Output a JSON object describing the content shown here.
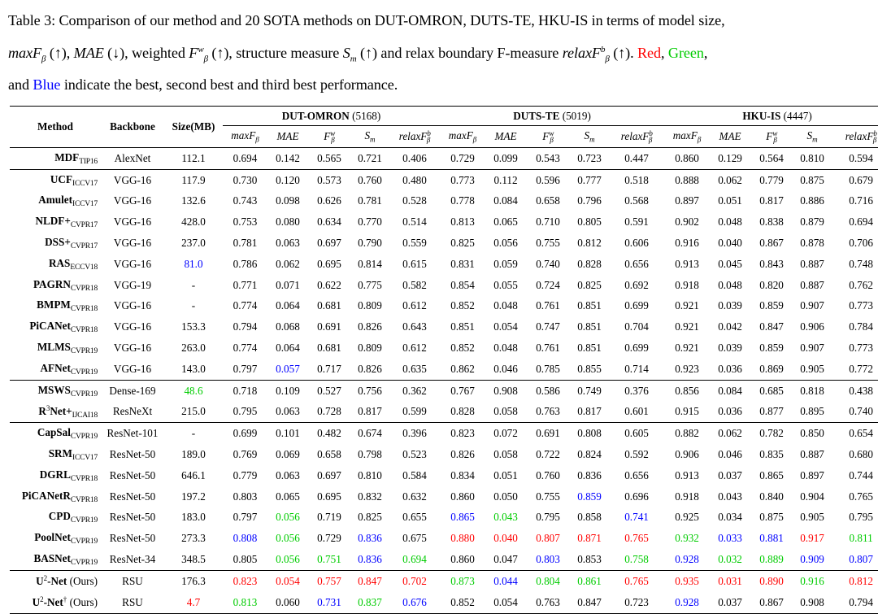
{
  "caption": {
    "line1": "Table 3: Comparison of our method and 20 SOTA methods on DUT-OMRON, DUTS-TE, HKU-IS in terms of model size,",
    "line2_a": "maxF",
    "line2_b": " (↑), ",
    "line2_c": "MAE",
    "line2_d": " (↓), weighted ",
    "line2_e": "F",
    "line2_f": " (↑), structure measure ",
    "line2_g": "S",
    "line2_h": " (↑) and relax boundary F-measure ",
    "line2_i": "relaxF",
    "line2_j": " (↑). ",
    "red_word": "Red",
    "comma": ", ",
    "green_word": "Green",
    "comma2": ",",
    "line3_a": "and ",
    "blue_word": "Blue",
    "line3_b": " indicate the best, second best and third best performance.",
    "sub_beta": "β",
    "sup_w": "w",
    "sub_m": "m",
    "sup_b": "b"
  },
  "header": {
    "method": "Method",
    "backbone": "Backbone",
    "size": "Size(MB)",
    "datasets": [
      {
        "name": "DUT-OMRON",
        "count": "(5168)"
      },
      {
        "name": "DUTS-TE",
        "count": "(5019)"
      },
      {
        "name": "HKU-IS",
        "count": "(4447)"
      }
    ],
    "metrics": [
      "maxF",
      "MAE",
      "F",
      "S",
      "relaxF"
    ],
    "metric_sub": [
      "β",
      "",
      "β",
      "m",
      "β"
    ],
    "metric_sup": [
      "",
      "",
      "w",
      "",
      "b"
    ]
  },
  "colors": {
    "red": "#ff0000",
    "green": "#00cc00",
    "blue": "#0000ff"
  },
  "rows": [
    {
      "name": "MDF",
      "venue": "TIP16",
      "backbone": "AlexNet",
      "size": "112.1",
      "values": [
        "0.694",
        "0.142",
        "0.565",
        "0.721",
        "0.406",
        "0.729",
        "0.099",
        "0.543",
        "0.723",
        "0.447",
        "0.860",
        "0.129",
        "0.564",
        "0.810",
        "0.594"
      ],
      "size_color": "",
      "colors": [
        "",
        "",
        "",
        "",
        "",
        "",
        "",
        "",
        "",
        "",
        "",
        "",
        "",
        "",
        ""
      ]
    },
    {
      "name": "UCF",
      "venue": "ICCV17",
      "backbone": "VGG-16",
      "size": "117.9",
      "values": [
        "0.730",
        "0.120",
        "0.573",
        "0.760",
        "0.480",
        "0.773",
        "0.112",
        "0.596",
        "0.777",
        "0.518",
        "0.888",
        "0.062",
        "0.779",
        "0.875",
        "0.679"
      ],
      "size_color": "",
      "colors": [
        "",
        "",
        "",
        "",
        "",
        "",
        "",
        "",
        "",
        "",
        "",
        "",
        "",
        "",
        ""
      ]
    },
    {
      "name": "Amulet",
      "venue": "ICCV17",
      "backbone": "VGG-16",
      "size": "132.6",
      "values": [
        "0.743",
        "0.098",
        "0.626",
        "0.781",
        "0.528",
        "0.778",
        "0.084",
        "0.658",
        "0.796",
        "0.568",
        "0.897",
        "0.051",
        "0.817",
        "0.886",
        "0.716"
      ],
      "size_color": "",
      "colors": [
        "",
        "",
        "",
        "",
        "",
        "",
        "",
        "",
        "",
        "",
        "",
        "",
        "",
        "",
        ""
      ]
    },
    {
      "name": "NLDF+",
      "venue": "CVPR17",
      "backbone": "VGG-16",
      "size": "428.0",
      "values": [
        "0.753",
        "0.080",
        "0.634",
        "0.770",
        "0.514",
        "0.813",
        "0.065",
        "0.710",
        "0.805",
        "0.591",
        "0.902",
        "0.048",
        "0.838",
        "0.879",
        "0.694"
      ],
      "size_color": "",
      "colors": [
        "",
        "",
        "",
        "",
        "",
        "",
        "",
        "",
        "",
        "",
        "",
        "",
        "",
        "",
        ""
      ]
    },
    {
      "name": "DSS+",
      "venue": "CVPR17",
      "backbone": "VGG-16",
      "size": "237.0",
      "values": [
        "0.781",
        "0.063",
        "0.697",
        "0.790",
        "0.559",
        "0.825",
        "0.056",
        "0.755",
        "0.812",
        "0.606",
        "0.916",
        "0.040",
        "0.867",
        "0.878",
        "0.706"
      ],
      "size_color": "",
      "colors": [
        "",
        "",
        "",
        "",
        "",
        "",
        "",
        "",
        "",
        "",
        "",
        "",
        "",
        "",
        ""
      ]
    },
    {
      "name": "RAS",
      "venue": "ECCV18",
      "backbone": "VGG-16",
      "size": "81.0",
      "values": [
        "0.786",
        "0.062",
        "0.695",
        "0.814",
        "0.615",
        "0.831",
        "0.059",
        "0.740",
        "0.828",
        "0.656",
        "0.913",
        "0.045",
        "0.843",
        "0.887",
        "0.748"
      ],
      "size_color": "blue",
      "colors": [
        "",
        "",
        "",
        "",
        "",
        "",
        "",
        "",
        "",
        "",
        "",
        "",
        "",
        "",
        ""
      ]
    },
    {
      "name": "PAGRN",
      "venue": "CVPR18",
      "backbone": "VGG-19",
      "size": "-",
      "values": [
        "0.771",
        "0.071",
        "0.622",
        "0.775",
        "0.582",
        "0.854",
        "0.055",
        "0.724",
        "0.825",
        "0.692",
        "0.918",
        "0.048",
        "0.820",
        "0.887",
        "0.762"
      ],
      "size_color": "",
      "colors": [
        "",
        "",
        "",
        "",
        "",
        "",
        "",
        "",
        "",
        "",
        "",
        "",
        "",
        "",
        ""
      ]
    },
    {
      "name": "BMPM",
      "venue": "CVPR18",
      "backbone": "VGG-16",
      "size": "-",
      "values": [
        "0.774",
        "0.064",
        "0.681",
        "0.809",
        "0.612",
        "0.852",
        "0.048",
        "0.761",
        "0.851",
        "0.699",
        "0.921",
        "0.039",
        "0.859",
        "0.907",
        "0.773"
      ],
      "size_color": "",
      "colors": [
        "",
        "",
        "",
        "",
        "",
        "",
        "",
        "",
        "",
        "",
        "",
        "",
        "",
        "",
        ""
      ]
    },
    {
      "name": "PiCANet",
      "venue": "CVPR18",
      "backbone": "VGG-16",
      "size": "153.3",
      "values": [
        "0.794",
        "0.068",
        "0.691",
        "0.826",
        "0.643",
        "0.851",
        "0.054",
        "0.747",
        "0.851",
        "0.704",
        "0.921",
        "0.042",
        "0.847",
        "0.906",
        "0.784"
      ],
      "size_color": "",
      "colors": [
        "",
        "",
        "",
        "",
        "",
        "",
        "",
        "",
        "",
        "",
        "",
        "",
        "",
        "",
        ""
      ]
    },
    {
      "name": "MLMS",
      "venue": "CVPR19",
      "backbone": "VGG-16",
      "size": "263.0",
      "values": [
        "0.774",
        "0.064",
        "0.681",
        "0.809",
        "0.612",
        "0.852",
        "0.048",
        "0.761",
        "0.851",
        "0.699",
        "0.921",
        "0.039",
        "0.859",
        "0.907",
        "0.773"
      ],
      "size_color": "",
      "colors": [
        "",
        "",
        "",
        "",
        "",
        "",
        "",
        "",
        "",
        "",
        "",
        "",
        "",
        "",
        ""
      ]
    },
    {
      "name": "AFNet",
      "venue": "CVPR19",
      "backbone": "VGG-16",
      "size": "143.0",
      "values": [
        "0.797",
        "0.057",
        "0.717",
        "0.826",
        "0.635",
        "0.862",
        "0.046",
        "0.785",
        "0.855",
        "0.714",
        "0.923",
        "0.036",
        "0.869",
        "0.905",
        "0.772"
      ],
      "size_color": "",
      "colors": [
        "",
        "blue",
        "",
        "",
        "",
        "",
        "",
        "",
        "",
        "",
        "",
        "",
        "",
        "",
        ""
      ]
    },
    {
      "name": "MSWS",
      "venue": "CVPR19",
      "backbone": "Dense-169",
      "size": "48.6",
      "values": [
        "0.718",
        "0.109",
        "0.527",
        "0.756",
        "0.362",
        "0.767",
        "0.908",
        "0.586",
        "0.749",
        "0.376",
        "0.856",
        "0.084",
        "0.685",
        "0.818",
        "0.438"
      ],
      "size_color": "green",
      "colors": [
        "",
        "",
        "",
        "",
        "",
        "",
        "",
        "",
        "",
        "",
        "",
        "",
        "",
        "",
        ""
      ]
    },
    {
      "name": "R",
      "name_sup": "3",
      "name_rest": "Net+",
      "venue": "IJCAI18",
      "backbone": "ResNeXt",
      "size": "215.0",
      "values": [
        "0.795",
        "0.063",
        "0.728",
        "0.817",
        "0.599",
        "0.828",
        "0.058",
        "0.763",
        "0.817",
        "0.601",
        "0.915",
        "0.036",
        "0.877",
        "0.895",
        "0.740"
      ],
      "size_color": "",
      "colors": [
        "",
        "",
        "",
        "",
        "",
        "",
        "",
        "",
        "",
        "",
        "",
        "",
        "",
        "",
        ""
      ]
    },
    {
      "name": "CapSal",
      "venue": "CVPR19",
      "backbone": "ResNet-101",
      "size": "-",
      "values": [
        "0.699",
        "0.101",
        "0.482",
        "0.674",
        "0.396",
        "0.823",
        "0.072",
        "0.691",
        "0.808",
        "0.605",
        "0.882",
        "0.062",
        "0.782",
        "0.850",
        "0.654"
      ],
      "size_color": "",
      "colors": [
        "",
        "",
        "",
        "",
        "",
        "",
        "",
        "",
        "",
        "",
        "",
        "",
        "",
        "",
        ""
      ]
    },
    {
      "name": "SRM",
      "venue": "ICCV17",
      "backbone": "ResNet-50",
      "size": "189.0",
      "values": [
        "0.769",
        "0.069",
        "0.658",
        "0.798",
        "0.523",
        "0.826",
        "0.058",
        "0.722",
        "0.824",
        "0.592",
        "0.906",
        "0.046",
        "0.835",
        "0.887",
        "0.680"
      ],
      "size_color": "",
      "colors": [
        "",
        "",
        "",
        "",
        "",
        "",
        "",
        "",
        "",
        "",
        "",
        "",
        "",
        "",
        ""
      ]
    },
    {
      "name": "DGRL",
      "venue": "CVPR18",
      "backbone": "ResNet-50",
      "size": "646.1",
      "values": [
        "0.779",
        "0.063",
        "0.697",
        "0.810",
        "0.584",
        "0.834",
        "0.051",
        "0.760",
        "0.836",
        "0.656",
        "0.913",
        "0.037",
        "0.865",
        "0.897",
        "0.744"
      ],
      "size_color": "",
      "colors": [
        "",
        "",
        "",
        "",
        "",
        "",
        "",
        "",
        "",
        "",
        "",
        "",
        "",
        "",
        ""
      ]
    },
    {
      "name": "PiCANetR",
      "venue": "CVPR18",
      "backbone": "ResNet-50",
      "size": "197.2",
      "values": [
        "0.803",
        "0.065",
        "0.695",
        "0.832",
        "0.632",
        "0.860",
        "0.050",
        "0.755",
        "0.859",
        "0.696",
        "0.918",
        "0.043",
        "0.840",
        "0.904",
        "0.765"
      ],
      "size_color": "",
      "colors": [
        "",
        "",
        "",
        "",
        "",
        "",
        "",
        "",
        "blue",
        "",
        "",
        "",
        "",
        "",
        ""
      ]
    },
    {
      "name": "CPD",
      "venue": "CVPR19",
      "backbone": "ResNet-50",
      "size": "183.0",
      "values": [
        "0.797",
        "0.056",
        "0.719",
        "0.825",
        "0.655",
        "0.865",
        "0.043",
        "0.795",
        "0.858",
        "0.741",
        "0.925",
        "0.034",
        "0.875",
        "0.905",
        "0.795"
      ],
      "size_color": "",
      "colors": [
        "",
        "green",
        "",
        "",
        "",
        "blue",
        "green",
        "",
        "",
        "blue",
        "",
        "",
        "",
        "",
        ""
      ]
    },
    {
      "name": "PoolNet",
      "venue": "CVPR19",
      "backbone": "ResNet-50",
      "size": "273.3",
      "values": [
        "0.808",
        "0.056",
        "0.729",
        "0.836",
        "0.675",
        "0.880",
        "0.040",
        "0.807",
        "0.871",
        "0.765",
        "0.932",
        "0.033",
        "0.881",
        "0.917",
        "0.811"
      ],
      "size_color": "",
      "colors": [
        "blue",
        "green",
        "",
        "blue",
        "",
        "red",
        "red",
        "red",
        "red",
        "red",
        "green",
        "blue",
        "blue",
        "red",
        "green"
      ]
    },
    {
      "name": "BASNet",
      "venue": "CVPR19",
      "backbone": "ResNet-34",
      "size": "348.5",
      "values": [
        "0.805",
        "0.056",
        "0.751",
        "0.836",
        "0.694",
        "0.860",
        "0.047",
        "0.803",
        "0.853",
        "0.758",
        "0.928",
        "0.032",
        "0.889",
        "0.909",
        "0.807"
      ],
      "size_color": "",
      "colors": [
        "",
        "green",
        "green",
        "blue",
        "green",
        "",
        "",
        "blue",
        "",
        "green",
        "blue",
        "green",
        "green",
        "blue",
        "blue"
      ]
    },
    {
      "name": "U",
      "name_sup": "2",
      "name_rest": "-Net",
      "ours": " (Ours)",
      "venue": "",
      "backbone": "RSU",
      "size": "176.3",
      "values": [
        "0.823",
        "0.054",
        "0.757",
        "0.847",
        "0.702",
        "0.873",
        "0.044",
        "0.804",
        "0.861",
        "0.765",
        "0.935",
        "0.031",
        "0.890",
        "0.916",
        "0.812"
      ],
      "size_color": "",
      "colors": [
        "red",
        "red",
        "red",
        "red",
        "red",
        "green",
        "blue",
        "green",
        "green",
        "red",
        "red",
        "red",
        "red",
        "green",
        "red"
      ]
    },
    {
      "name": "U",
      "name_sup": "2",
      "name_rest": "-Net",
      "name_sup2": "†",
      "ours": " (Ours)",
      "venue": "",
      "backbone": "RSU",
      "size": "4.7",
      "values": [
        "0.813",
        "0.060",
        "0.731",
        "0.837",
        "0.676",
        "0.852",
        "0.054",
        "0.763",
        "0.847",
        "0.723",
        "0.928",
        "0.037",
        "0.867",
        "0.908",
        "0.794"
      ],
      "size_color": "red",
      "colors": [
        "green",
        "",
        "blue",
        "green",
        "blue",
        "",
        "",
        "",
        "",
        "",
        "blue",
        "",
        "",
        "",
        ""
      ]
    }
  ],
  "group_breaks": [
    1,
    11,
    13,
    20
  ]
}
